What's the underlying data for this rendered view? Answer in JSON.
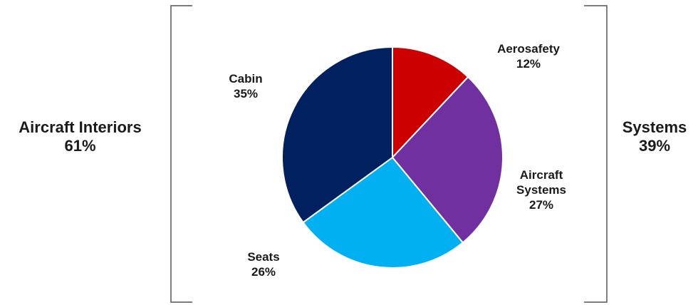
{
  "chart_data": {
    "type": "pie",
    "slices": [
      {
        "label_lines": [
          "Aerosafety"
        ],
        "percent_label": "12%",
        "value": 12,
        "color": "#cc0000"
      },
      {
        "label_lines": [
          "Aircraft",
          "Systems"
        ],
        "percent_label": "27%",
        "value": 27,
        "color": "#7030a0"
      },
      {
        "label_lines": [
          "Seats"
        ],
        "percent_label": "26%",
        "value": 26,
        "color": "#00b0f0"
      },
      {
        "label_lines": [
          "Cabin"
        ],
        "percent_label": "35%",
        "value": 35,
        "color": "#002060"
      }
    ],
    "groups": [
      {
        "name": "Aircraft Interiors",
        "percent_label": "61%",
        "value": 61
      },
      {
        "name": "Systems",
        "percent_label": "39%",
        "value": 39
      }
    ],
    "bracket_color": "#555555"
  }
}
